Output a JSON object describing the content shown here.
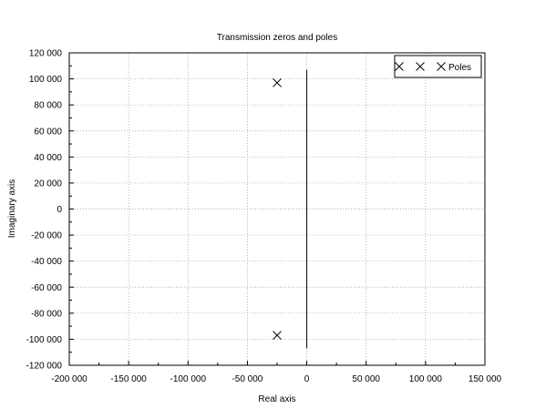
{
  "chart_data": {
    "type": "scatter",
    "title": "Transmission zeros and poles",
    "xlabel": "Real axis",
    "ylabel": "Imaginary axis",
    "xlim": [
      -200000,
      150000
    ],
    "ylim": [
      -120000,
      120000
    ],
    "xticks": [
      -200000,
      -150000,
      -100000,
      -50000,
      0,
      50000,
      100000,
      150000
    ],
    "xtick_labels": [
      "-200 000",
      "-150 000",
      "-100 000",
      "-50 000",
      "0",
      "50 000",
      "100 000",
      "150 000"
    ],
    "yticks": [
      120000,
      100000,
      80000,
      60000,
      40000,
      20000,
      0,
      -20000,
      -40000,
      -60000,
      -80000,
      -100000,
      -120000
    ],
    "ytick_labels": [
      "120 000",
      "100 000",
      "80 000",
      "60 000",
      "40 000",
      "20 000",
      "0",
      "-20 000",
      "-40 000",
      "-60 000",
      "-80 000",
      "-100 000",
      "-120 000"
    ],
    "grid": true,
    "legend_position": "top-right",
    "series": [
      {
        "name": "Poles",
        "marker": "x",
        "color": "#000000",
        "points": [
          {
            "x": -25000,
            "y": 97000
          },
          {
            "x": -25000,
            "y": -97000
          }
        ]
      }
    ],
    "vertical_line": {
      "x": 0,
      "y_from": -107000,
      "y_to": 107000
    }
  }
}
